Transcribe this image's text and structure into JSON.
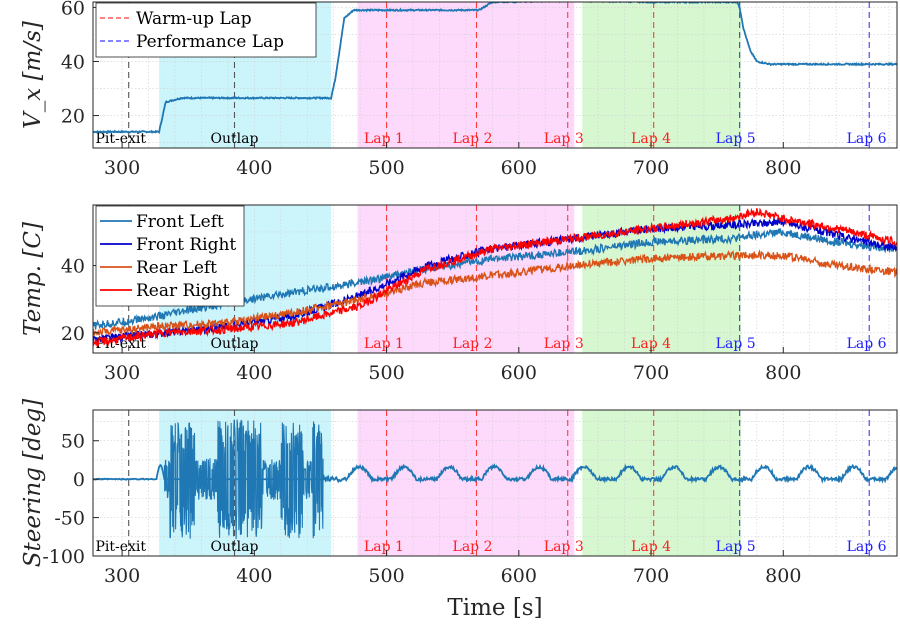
{
  "xlabel": "Time [s]",
  "chart_data": [
    {
      "type": "line",
      "ylabel": "V_x [m/s]",
      "xlim": [
        278,
        886
      ],
      "ylim": [
        8,
        62
      ],
      "yticks": [
        20,
        40,
        60
      ],
      "xticks": [
        300,
        400,
        500,
        600,
        700,
        800
      ],
      "grid": true,
      "legend_placement": "top-left",
      "legend": [
        {
          "label": "Warm-up Lap",
          "color": "#ff3b3b",
          "dash": true
        },
        {
          "label": "Performance Lap",
          "color": "#3b3bff",
          "dash": true
        }
      ],
      "series": [
        {
          "color": "#1f77b4",
          "x": [
            278,
            328,
            333,
            345,
            458,
            461,
            465,
            468,
            475,
            570,
            580,
            640,
            700,
            765,
            767,
            770,
            775,
            780,
            790,
            886
          ],
          "y": [
            14,
            14,
            25,
            26.5,
            26.5,
            33,
            46,
            56,
            59,
            59,
            62,
            62.5,
            62,
            62,
            60,
            52,
            44,
            40,
            39,
            39
          ]
        }
      ]
    },
    {
      "type": "line",
      "ylabel": "Temp. [C]",
      "xlim": [
        278,
        886
      ],
      "ylim": [
        14,
        58
      ],
      "yticks": [
        20,
        40
      ],
      "xticks": [
        300,
        400,
        500,
        600,
        700,
        800
      ],
      "grid": true,
      "legend_placement": "top-left",
      "legend": [
        {
          "label": "Front Left",
          "color": "#1f77b4"
        },
        {
          "label": "Front Right",
          "color": "#0000cc"
        },
        {
          "label": "Rear Left",
          "color": "#d95319"
        },
        {
          "label": "Rear Right",
          "color": "#ff0000"
        }
      ],
      "series": [
        {
          "name": "Front Left",
          "color": "#1f77b4",
          "x": [
            278,
            330,
            380,
            430,
            480,
            530,
            580,
            640,
            700,
            760,
            800,
            840,
            886
          ],
          "y": [
            22,
            25,
            29,
            32,
            35,
            39,
            42,
            44,
            47,
            48,
            50,
            47,
            45
          ]
        },
        {
          "name": "Front Right",
          "color": "#0000cc",
          "x": [
            278,
            330,
            380,
            430,
            480,
            530,
            580,
            640,
            700,
            760,
            800,
            840,
            886
          ],
          "y": [
            18,
            20,
            22,
            25,
            31,
            40,
            45,
            48,
            51,
            52,
            53,
            49,
            45
          ]
        },
        {
          "name": "Rear Left",
          "color": "#d95319",
          "x": [
            278,
            330,
            380,
            430,
            480,
            530,
            580,
            640,
            700,
            760,
            800,
            840,
            886
          ],
          "y": [
            20,
            22,
            23,
            26,
            30,
            35,
            37,
            40,
            42,
            43,
            43,
            40,
            38
          ]
        },
        {
          "name": "Rear Right",
          "color": "#ff0000",
          "x": [
            278,
            330,
            380,
            430,
            480,
            530,
            580,
            640,
            700,
            760,
            780,
            800,
            840,
            886
          ],
          "y": [
            17,
            20,
            21,
            23,
            28,
            39,
            45,
            48,
            51,
            54,
            56,
            54,
            51,
            47
          ]
        }
      ]
    },
    {
      "type": "line",
      "ylabel": "Steering [deg]",
      "xlim": [
        278,
        886
      ],
      "ylim": [
        -100,
        90
      ],
      "yticks": [
        -100,
        -50,
        0,
        50
      ],
      "xticks": [
        300,
        400,
        500,
        600,
        700,
        800
      ],
      "grid": true,
      "series": [
        {
          "color": "#1f77b4",
          "x": [
            278,
            325,
            330,
            335,
            450,
            455,
            480,
            886
          ],
          "y": [
            0,
            0,
            18,
            0,
            0,
            0,
            0,
            0
          ]
        }
      ],
      "noisy_band": {
        "x": [
          332,
          452
        ],
        "amp": 78
      }
    }
  ],
  "regions": [
    {
      "x": [
        328,
        458
      ],
      "color": "#ccf5fb"
    },
    {
      "x": [
        478,
        642
      ],
      "color": "#fdd9fb"
    },
    {
      "x": [
        648,
        768
      ],
      "color": "#d6f7d0"
    }
  ],
  "lap_lines": [
    {
      "x": 305,
      "color": "#555555"
    },
    {
      "x": 385,
      "color": "#555555"
    },
    {
      "x": 500,
      "color": "#ff3b3b"
    },
    {
      "x": 568,
      "color": "#ff3b3b"
    },
    {
      "x": 637,
      "color": "#ff3b3b"
    },
    {
      "x": 702,
      "color": "#ff3b3b"
    },
    {
      "x": 767,
      "color": "#3b3bff"
    },
    {
      "x": 865,
      "color": "#3b3bff"
    }
  ],
  "lap_labels": [
    {
      "text": "Pit-exit",
      "x": 299,
      "color": "#000000"
    },
    {
      "text": "Outlap",
      "x": 385,
      "color": "#000000"
    },
    {
      "text": "Lap 1",
      "x": 498,
      "color": "#ff2020"
    },
    {
      "text": "Lap 2",
      "x": 565,
      "color": "#ff2020"
    },
    {
      "text": "Lap 3",
      "x": 634,
      "color": "#ff2020"
    },
    {
      "text": "Lap 4",
      "x": 700,
      "color": "#ff2020"
    },
    {
      "text": "Lap 5",
      "x": 764,
      "color": "#2020ff"
    },
    {
      "text": "Lap 6",
      "x": 863,
      "color": "#2020ff"
    }
  ]
}
